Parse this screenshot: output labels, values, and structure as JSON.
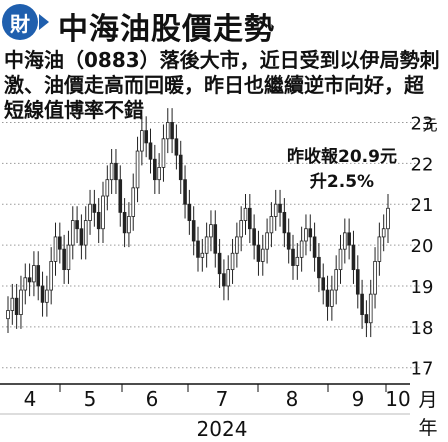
{
  "header": {
    "logo_text": "財",
    "title": "中海油股價走勢"
  },
  "article": {
    "lines": [
      "中海油（0883）落後大市，近日受到以伊局勢刺",
      "激、油價走高而回暖，昨日也繼續逆市向好，超",
      "短線值博率不錯"
    ]
  },
  "chart_data": {
    "type": "candlestick",
    "title": "",
    "annotation": [
      "昨收報20.9元",
      "升2.5%"
    ],
    "y_unit": "元",
    "x_unit_month": "月",
    "x_unit_year": "年",
    "x_year": "2024",
    "x_ticks": [
      "4",
      "5",
      "6",
      "7",
      "8",
      "9",
      "10"
    ],
    "y_ticks": [
      17,
      18,
      19,
      20,
      21,
      22,
      23
    ],
    "ylim": [
      16.7,
      23.5
    ],
    "grid": "horizontal-dotted",
    "closes": [
      18.4,
      18.7,
      18.3,
      18.9,
      19.2,
      19.1,
      19.5,
      19.0,
      18.6,
      18.9,
      19.6,
      20.2,
      19.9,
      19.4,
      20.0,
      20.6,
      20.4,
      20.0,
      20.6,
      21.0,
      20.8,
      20.4,
      21.2,
      21.6,
      22.0,
      21.6,
      20.8,
      20.3,
      20.7,
      21.4,
      22.3,
      22.8,
      22.5,
      22.1,
      21.6,
      21.9,
      22.6,
      23.0,
      22.6,
      22.2,
      21.6,
      21.0,
      20.6,
      20.1,
      19.7,
      19.8,
      20.2,
      20.5,
      19.8,
      19.3,
      19.0,
      19.4,
      19.8,
      20.2,
      20.6,
      20.9,
      20.4,
      20.0,
      19.6,
      19.9,
      20.3,
      20.7,
      21.0,
      20.8,
      20.3,
      19.9,
      19.5,
      19.7,
      20.1,
      20.4,
      20.2,
      19.7,
      19.2,
      18.9,
      18.5,
      18.9,
      19.4,
      19.9,
      20.3,
      20.0,
      19.4,
      18.8,
      18.3,
      18.1,
      18.8,
      19.6,
      20.2,
      20.4,
      20.9
    ]
  }
}
